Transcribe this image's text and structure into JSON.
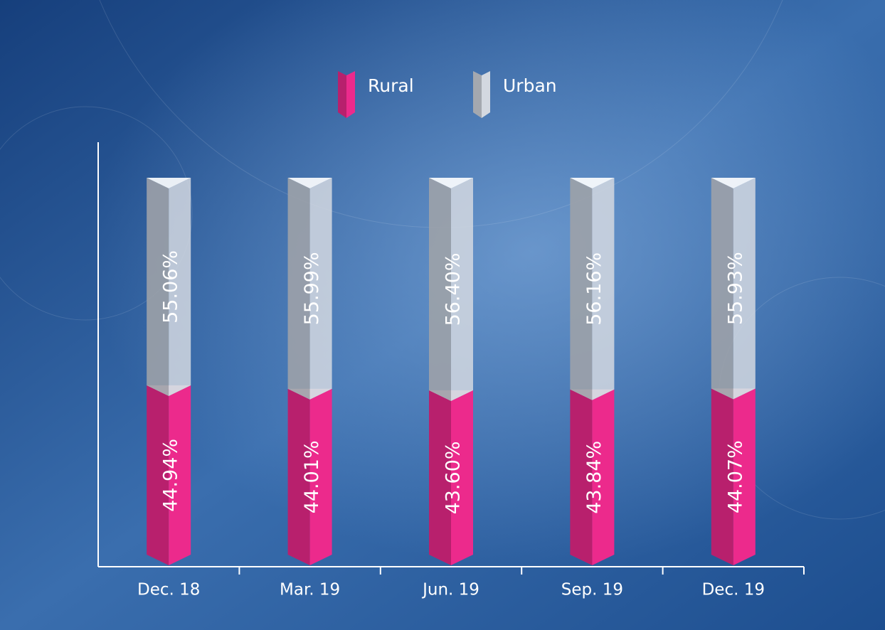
{
  "chart_data": {
    "type": "stacked-bar",
    "categories": [
      "Dec. 18",
      "Mar. 19",
      "Jun. 19",
      "Sep. 19",
      "Dec. 19"
    ],
    "series": [
      {
        "name": "Rural",
        "color": "#ec2a8c",
        "values": [
          44.94,
          44.01,
          43.6,
          43.84,
          44.07
        ],
        "value_labels": [
          "44.94%",
          "44.01%",
          "43.60%",
          "43.84%",
          "44.07%"
        ]
      },
      {
        "name": "Urban",
        "color": "#d3d8e0",
        "values": [
          55.06,
          55.99,
          56.4,
          56.16,
          55.93
        ],
        "value_labels": [
          "55.06%",
          "55.99%",
          "56.40%",
          "56.16%",
          "55.93%"
        ]
      }
    ],
    "ylim": [
      0,
      100
    ],
    "legend": "top"
  }
}
